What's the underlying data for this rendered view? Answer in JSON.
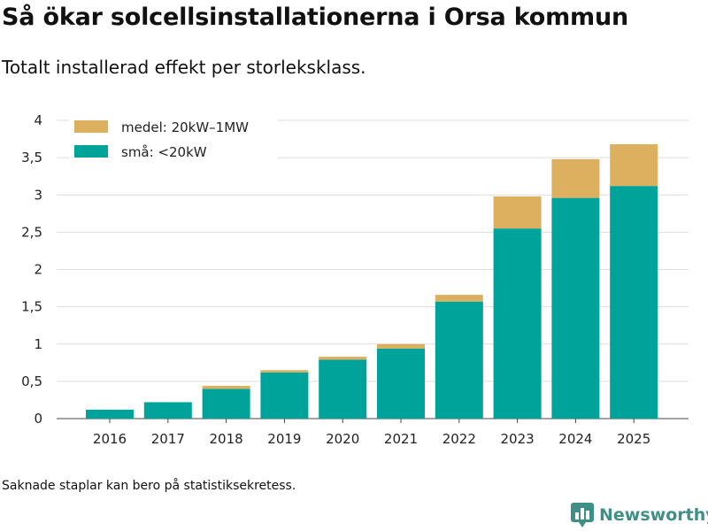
{
  "header": {
    "title": "Så ökar solcellsinstallationerna i Orsa kommun",
    "subtitle": "Totalt installerad effekt per storleksklass."
  },
  "footer": {
    "note": "Saknade staplar kan bero på statistiksekretess.",
    "brand": "Newsworthy",
    "brand_icon": "bar-chart-logo-icon"
  },
  "colors": {
    "small": "#00a39a",
    "medium": "#dcb05e",
    "grid": "#dddddd",
    "axis": "#444444",
    "brand": "#3f8f87"
  },
  "chart_data": {
    "type": "bar",
    "stacked": true,
    "title": "Så ökar solcellsinstallationerna i Orsa kommun",
    "subtitle": "Totalt installerad effekt per storleksklass.",
    "xlabel": "",
    "ylabel": "",
    "ylim": [
      0,
      4
    ],
    "yticks": [
      0,
      0.5,
      1,
      1.5,
      2,
      2.5,
      3,
      3.5,
      4
    ],
    "ytick_labels": [
      "0",
      "0,5",
      "1",
      "1,5",
      "2",
      "2,5",
      "3",
      "3,5",
      "4"
    ],
    "grid": true,
    "legend_position": "top-left",
    "categories": [
      "2016",
      "2017",
      "2018",
      "2019",
      "2020",
      "2021",
      "2022",
      "2023",
      "2024",
      "2025"
    ],
    "series": [
      {
        "name": "små: <20kW",
        "color": "#00a39a",
        "values": [
          0.12,
          0.22,
          0.4,
          0.62,
          0.79,
          0.94,
          1.57,
          2.55,
          2.96,
          3.12
        ]
      },
      {
        "name": "medel: 20kW–1MW",
        "color": "#dcb05e",
        "values": [
          0,
          0,
          0.04,
          0.03,
          0.04,
          0.06,
          0.09,
          0.43,
          0.52,
          0.56
        ]
      }
    ]
  }
}
